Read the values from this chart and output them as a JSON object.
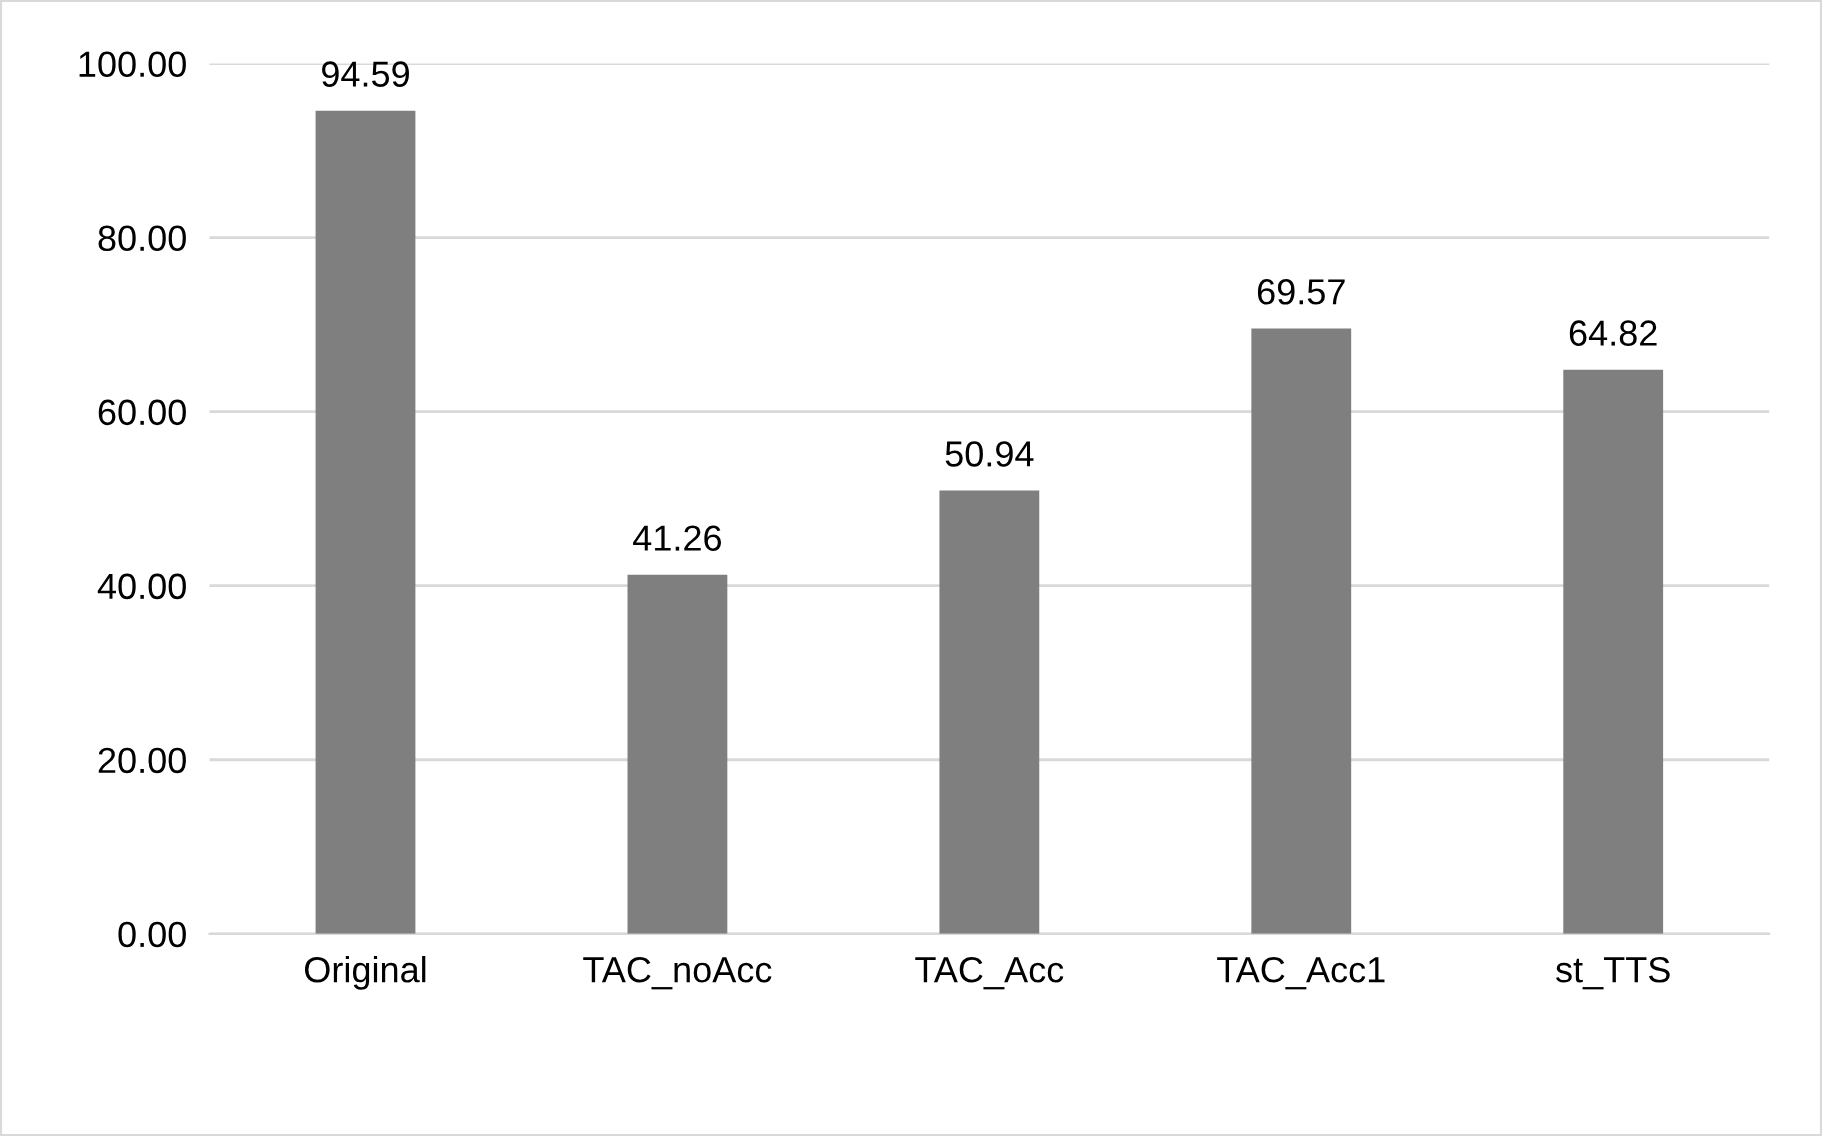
{
  "chart_data": {
    "type": "bar",
    "categories": [
      "Original",
      "TAC_noAcc",
      "TAC_Acc",
      "TAC_Acc1",
      "st_TTS"
    ],
    "values": [
      94.59,
      41.26,
      50.94,
      69.57,
      64.82
    ],
    "color": "#7f7f7f",
    "ylim": [
      0,
      100
    ],
    "yticks": [
      {
        "value": 0,
        "label": "0.00"
      },
      {
        "value": 20,
        "label": "20.00"
      },
      {
        "value": 40,
        "label": "40.00"
      },
      {
        "value": 60,
        "label": "60.00"
      },
      {
        "value": 80,
        "label": "80.00"
      },
      {
        "value": 100,
        "label": "100.00"
      }
    ],
    "grid": "y",
    "data_labels": true,
    "legend": false
  }
}
